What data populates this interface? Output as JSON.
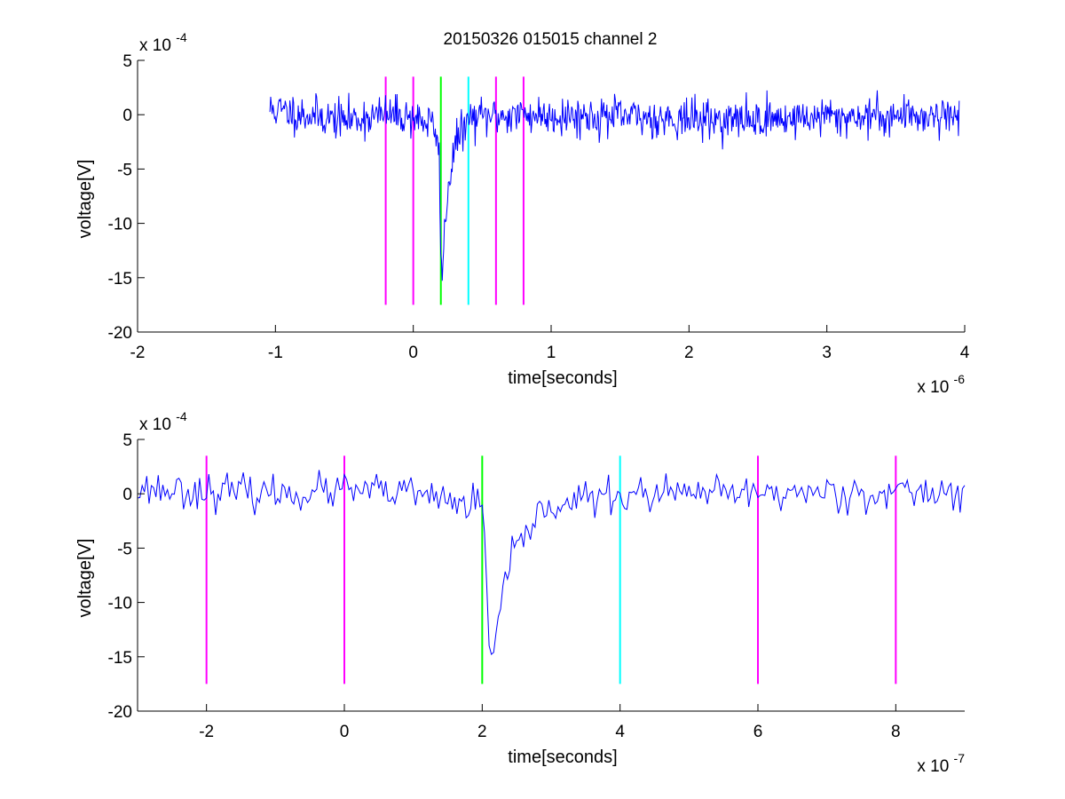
{
  "figure": {
    "title": "20150326 015015 channel 2"
  },
  "chart_data": [
    {
      "type": "line",
      "title": "20150326 015015 channel 2",
      "xlabel": "time[seconds]",
      "ylabel": "voltage[V]",
      "x_multiplier_label": "x 10",
      "x_multiplier_exp": "-6",
      "y_multiplier_label": "x 10",
      "y_multiplier_exp": "-4",
      "xlim": [
        -2e-06,
        4e-06
      ],
      "ylim": [
        -0.002,
        0.0005
      ],
      "x_ticks": [
        -2e-06,
        -1e-06,
        0,
        1e-06,
        2e-06,
        3e-06,
        4e-06
      ],
      "x_tick_labels": [
        "-2",
        "-1",
        "0",
        "1",
        "2",
        "3",
        "4"
      ],
      "y_ticks": [
        0.0005,
        0,
        -0.0005,
        -0.001,
        -0.0015,
        -0.002
      ],
      "y_tick_labels": [
        "5",
        "0",
        "-5",
        "-10",
        "-15",
        "-20"
      ],
      "grid": false,
      "series": [
        {
          "color": "#0000ff",
          "noise_std": 9e-05,
          "noise_seed": 11,
          "points_x": [
            -1.04e-06,
            -5e-07,
            -2e-07,
            0.0,
            1.5e-07,
            1.9e-07,
            2e-07,
            2.1e-07,
            2.3e-07,
            2.6e-07,
            3e-07,
            3.5e-07,
            4e-07,
            5e-07,
            8e-07,
            1.5e-06,
            2.3e-06,
            3e-06,
            3.96e-06
          ],
          "points_y": [
            5e-05,
            -5e-05,
            0.0,
            -2e-05,
            -0.0001,
            -0.0004,
            -0.0013,
            -0.0015,
            -0.001,
            -0.0006,
            -0.0003,
            -0.00015,
            -5e-05,
            -2e-05,
            0.0,
            -2e-05,
            -5e-05,
            -2e-05,
            0.0
          ]
        }
      ],
      "vlines": [
        {
          "x": -2e-07,
          "color": "#ff00ff",
          "y0": -0.00175,
          "y1": 0.00035
        },
        {
          "x": 0.0,
          "color": "#ff00ff",
          "y0": -0.00175,
          "y1": 0.00035
        },
        {
          "x": 2e-07,
          "color": "#00ff00",
          "y0": -0.00175,
          "y1": 0.00035
        },
        {
          "x": 4e-07,
          "color": "#00ffff",
          "y0": -0.00175,
          "y1": 0.00035
        },
        {
          "x": 6e-07,
          "color": "#ff00ff",
          "y0": -0.00175,
          "y1": 0.00035
        },
        {
          "x": 8e-07,
          "color": "#ff00ff",
          "y0": -0.00175,
          "y1": 0.00035
        }
      ]
    },
    {
      "type": "line",
      "title": "",
      "xlabel": "time[seconds]",
      "ylabel": "voltage[V]",
      "x_multiplier_label": "x 10",
      "x_multiplier_exp": "-7",
      "y_multiplier_label": "x 10",
      "y_multiplier_exp": "-4",
      "xlim": [
        -3e-07,
        9e-07
      ],
      "ylim": [
        -0.002,
        0.0005
      ],
      "x_ticks": [
        -2e-07,
        0,
        2e-07,
        4e-07,
        6e-07,
        8e-07
      ],
      "x_tick_labels": [
        "-2",
        "0",
        "2",
        "4",
        "6",
        "8"
      ],
      "y_ticks": [
        0.0005,
        0,
        -0.0005,
        -0.001,
        -0.0015,
        -0.002
      ],
      "y_tick_labels": [
        "5",
        "0",
        "-5",
        "-10",
        "-15",
        "-20"
      ],
      "grid": false,
      "series": [
        {
          "color": "#0000ff",
          "noise_std": 8e-05,
          "noise_seed": 23,
          "points_x": [
            -3e-07,
            -1e-07,
            0.0,
            1e-07,
            1.8e-07,
            2e-07,
            2.05e-07,
            2.1e-07,
            2.15e-07,
            2.2e-07,
            2.3e-07,
            2.45e-07,
            2.6e-07,
            2.8e-07,
            3e-07,
            3.5e-07,
            4e-07,
            5e-07,
            6e-07,
            7e-07,
            8e-07,
            9e-07
          ],
          "points_y": [
            5e-05,
            0.0,
            3e-05,
            0.0,
            -0.0001,
            -0.0001,
            -0.0006,
            -0.0014,
            -0.0016,
            -0.0013,
            -0.0009,
            -0.0006,
            -0.0004,
            -0.0002,
            -0.0001,
            -5e-05,
            -2e-05,
            0.0,
            0.0,
            2e-05,
            0.0,
            3e-05
          ]
        }
      ],
      "vlines": [
        {
          "x": -2e-07,
          "color": "#ff00ff",
          "y0": -0.00175,
          "y1": 0.00035
        },
        {
          "x": 0.0,
          "color": "#ff00ff",
          "y0": -0.00175,
          "y1": 0.00035
        },
        {
          "x": 2e-07,
          "color": "#00ff00",
          "y0": -0.00175,
          "y1": 0.00035
        },
        {
          "x": 4e-07,
          "color": "#00ffff",
          "y0": -0.00175,
          "y1": 0.00035
        },
        {
          "x": 6e-07,
          "color": "#ff00ff",
          "y0": -0.00175,
          "y1": 0.00035
        },
        {
          "x": 8e-07,
          "color": "#ff00ff",
          "y0": -0.00175,
          "y1": 0.00035
        }
      ]
    }
  ]
}
